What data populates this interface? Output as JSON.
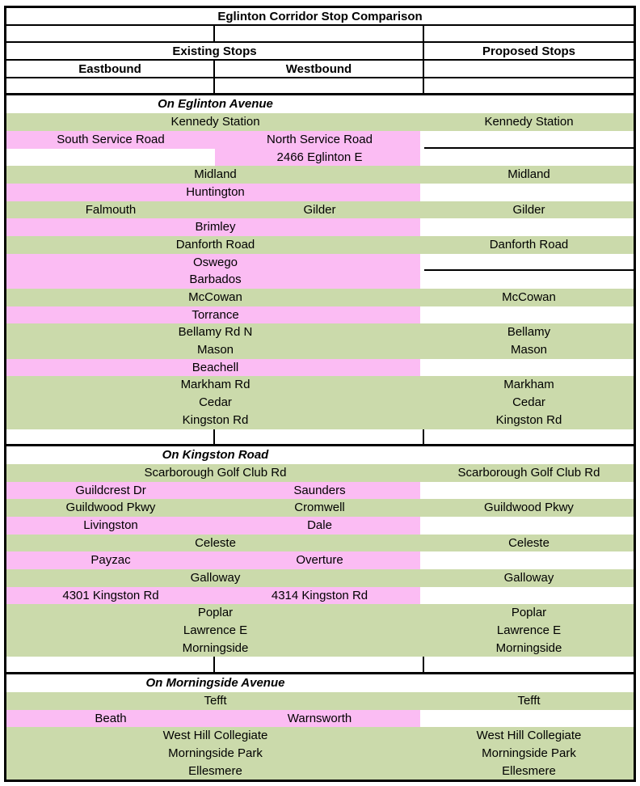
{
  "title": "Eglinton Corridor Stop Comparison",
  "headers": {
    "existing": "Existing Stops",
    "proposed": "Proposed Stops",
    "eastbound": "Eastbound",
    "westbound": "Westbound"
  },
  "colors": {
    "kept_stop_green": "#cbdaab",
    "removed_stop_pink": "#fbbcf3",
    "border": "#000000",
    "text": "#000000"
  },
  "sections": [
    {
      "header": "On Eglinton Avenue",
      "rows": [
        {
          "kind": "merged",
          "color": "green",
          "existing": "Kennedy Station",
          "proposed": "Kennedy Station"
        },
        {
          "kind": "split",
          "color": "pink",
          "eb": "South Service Road",
          "wb": "North Service Road",
          "proposed": null,
          "proposedDivider": true
        },
        {
          "kind": "split",
          "color": "pink",
          "eb": "",
          "ebBlank": true,
          "wb": "2466 Eglinton E",
          "proposed": null
        },
        {
          "kind": "merged",
          "color": "green",
          "existing": "Midland",
          "proposed": "Midland"
        },
        {
          "kind": "merged",
          "color": "pink",
          "existing": "Huntington",
          "proposed": null
        },
        {
          "kind": "split",
          "color": "green",
          "eb": "Falmouth",
          "wb": "Gilder",
          "proposed": "Gilder"
        },
        {
          "kind": "merged",
          "color": "pink",
          "existing": "Brimley",
          "proposed": null
        },
        {
          "kind": "merged",
          "color": "green",
          "existing": "Danforth Road",
          "proposed": "Danforth Road"
        },
        {
          "kind": "merged",
          "color": "pink",
          "existing": "Oswego",
          "proposed": null,
          "proposedDivider": true
        },
        {
          "kind": "merged",
          "color": "pink",
          "existing": "Barbados",
          "proposed": null
        },
        {
          "kind": "merged",
          "color": "green",
          "existing": "McCowan",
          "proposed": "McCowan"
        },
        {
          "kind": "merged",
          "color": "pink",
          "existing": "Torrance",
          "proposed": null
        },
        {
          "kind": "merged",
          "color": "green",
          "existing": "Bellamy Rd N",
          "proposed": "Bellamy"
        },
        {
          "kind": "merged",
          "color": "green",
          "existing": "Mason",
          "proposed": "Mason"
        },
        {
          "kind": "merged",
          "color": "pink",
          "existing": "Beachell",
          "proposed": null
        },
        {
          "kind": "merged",
          "color": "green",
          "existing": "Markham Rd",
          "proposed": "Markham"
        },
        {
          "kind": "merged",
          "color": "green",
          "existing": "Cedar",
          "proposed": "Cedar"
        },
        {
          "kind": "merged",
          "color": "green",
          "existing": "Kingston Rd",
          "proposed": "Kingston Rd"
        }
      ]
    },
    {
      "header": "On Kingston Road",
      "rows": [
        {
          "kind": "merged",
          "color": "green",
          "existing": "Scarborough Golf Club Rd",
          "proposed": "Scarborough Golf Club Rd"
        },
        {
          "kind": "split",
          "color": "pink",
          "eb": "Guildcrest Dr",
          "wb": "Saunders",
          "proposed": null
        },
        {
          "kind": "split",
          "color": "green",
          "eb": "Guildwood Pkwy",
          "wb": "Cromwell",
          "proposed": "Guildwood Pkwy"
        },
        {
          "kind": "split",
          "color": "pink",
          "eb": "Livingston",
          "wb": "Dale",
          "proposed": null
        },
        {
          "kind": "merged",
          "color": "green",
          "existing": "Celeste",
          "proposed": "Celeste"
        },
        {
          "kind": "split",
          "color": "pink",
          "eb": "Payzac",
          "wb": "Overture",
          "proposed": null
        },
        {
          "kind": "merged",
          "color": "green",
          "existing": "Galloway",
          "proposed": "Galloway"
        },
        {
          "kind": "split",
          "color": "pink",
          "eb": "4301 Kingston Rd",
          "wb": "4314 Kingston Rd",
          "proposed": null
        },
        {
          "kind": "merged",
          "color": "green",
          "existing": "Poplar",
          "proposed": "Poplar"
        },
        {
          "kind": "merged",
          "color": "green",
          "existing": "Lawrence E",
          "proposed": "Lawrence E"
        },
        {
          "kind": "merged",
          "color": "green",
          "existing": "Morningside",
          "proposed": "Morningside"
        }
      ]
    },
    {
      "header": "On Morningside Avenue",
      "rows": [
        {
          "kind": "merged",
          "color": "green",
          "existing": "Tefft",
          "proposed": "Tefft"
        },
        {
          "kind": "split",
          "color": "pink",
          "eb": "Beath",
          "wb": "Warnsworth",
          "proposed": null
        },
        {
          "kind": "merged",
          "color": "green",
          "existing": "West Hill Collegiate",
          "proposed": "West Hill Collegiate"
        },
        {
          "kind": "merged",
          "color": "green",
          "existing": "Morningside Park",
          "proposed": "Morningside Park"
        },
        {
          "kind": "merged",
          "color": "green",
          "existing": "Ellesmere",
          "proposed": "Ellesmere"
        }
      ]
    }
  ]
}
